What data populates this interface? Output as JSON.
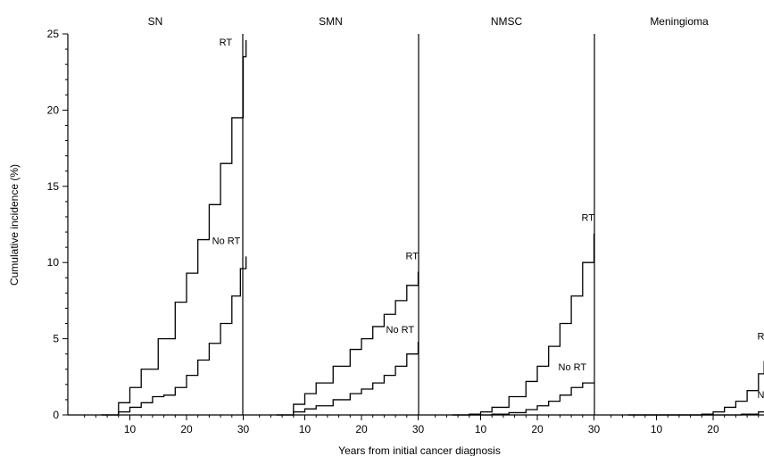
{
  "chart_data": {
    "type": "line",
    "xlabel": "Years from initial cancer diagnosis",
    "ylabel": "Cumulative incidence (%)",
    "ylim": [
      0,
      25
    ],
    "yticks": [
      0,
      5,
      10,
      15,
      20,
      25
    ],
    "xlim": [
      0,
      31
    ],
    "xticks": [
      10,
      20,
      30
    ],
    "panels": [
      {
        "title": "SN",
        "series": [
          {
            "name": "RT",
            "x": [
              5,
              8,
              10,
              12,
              15,
              18,
              20,
              22,
              24,
              26,
              28,
              30,
              30.5
            ],
            "y": [
              0,
              0.8,
              1.8,
              3.0,
              5.0,
              7.4,
              9.3,
              11.5,
              13.8,
              16.5,
              19.5,
              23.5,
              24.6
            ]
          },
          {
            "name": "No RT",
            "x": [
              5,
              8,
              10,
              12,
              14,
              16,
              18,
              20,
              22,
              24,
              26,
              28,
              29.5,
              30.5
            ],
            "y": [
              0,
              0.2,
              0.5,
              0.8,
              1.2,
              1.3,
              1.8,
              2.6,
              3.6,
              4.7,
              6.0,
              7.8,
              9.6,
              10.4
            ]
          }
        ]
      },
      {
        "title": "SMN",
        "series": [
          {
            "name": "RT",
            "x": [
              5,
              8,
              10,
              12,
              15,
              18,
              20,
              22,
              24,
              26,
              28,
              30
            ],
            "y": [
              0,
              0.7,
              1.4,
              2.1,
              3.2,
              4.3,
              5.0,
              5.8,
              6.6,
              7.5,
              8.5,
              9.4
            ]
          },
          {
            "name": "No RT",
            "x": [
              5,
              8,
              10,
              12,
              15,
              18,
              20,
              22,
              24,
              26,
              28,
              30
            ],
            "y": [
              0,
              0.2,
              0.4,
              0.6,
              1.0,
              1.4,
              1.7,
              2.1,
              2.6,
              3.2,
              4.0,
              4.8
            ]
          }
        ]
      },
      {
        "title": "NMSC",
        "series": [
          {
            "name": "RT",
            "x": [
              5,
              8,
              10,
              12,
              15,
              18,
              20,
              22,
              24,
              26,
              28,
              30
            ],
            "y": [
              0,
              0.05,
              0.2,
              0.5,
              1.2,
              2.2,
              3.2,
              4.5,
              6.0,
              7.8,
              10.0,
              11.9
            ]
          },
          {
            "name": "No RT",
            "x": [
              5,
              10,
              12,
              15,
              18,
              20,
              22,
              24,
              26,
              28,
              30
            ],
            "y": [
              0,
              0,
              0.05,
              0.15,
              0.35,
              0.6,
              0.9,
              1.3,
              1.8,
              2.1,
              2.1
            ]
          }
        ]
      },
      {
        "title": "Meningioma",
        "series": [
          {
            "name": "RT",
            "x": [
              5,
              10,
              15,
              18,
              20,
              22,
              24,
              26,
              28,
              29,
              30
            ],
            "y": [
              0,
              0,
              0,
              0.05,
              0.2,
              0.5,
              0.9,
              1.6,
              2.7,
              3.5,
              4.0
            ]
          },
          {
            "name": "No RT",
            "x": [
              5,
              10,
              15,
              20,
              25,
              28,
              30
            ],
            "y": [
              0,
              0,
              0,
              0,
              0.05,
              0.2,
              0.3
            ]
          }
        ]
      }
    ]
  }
}
